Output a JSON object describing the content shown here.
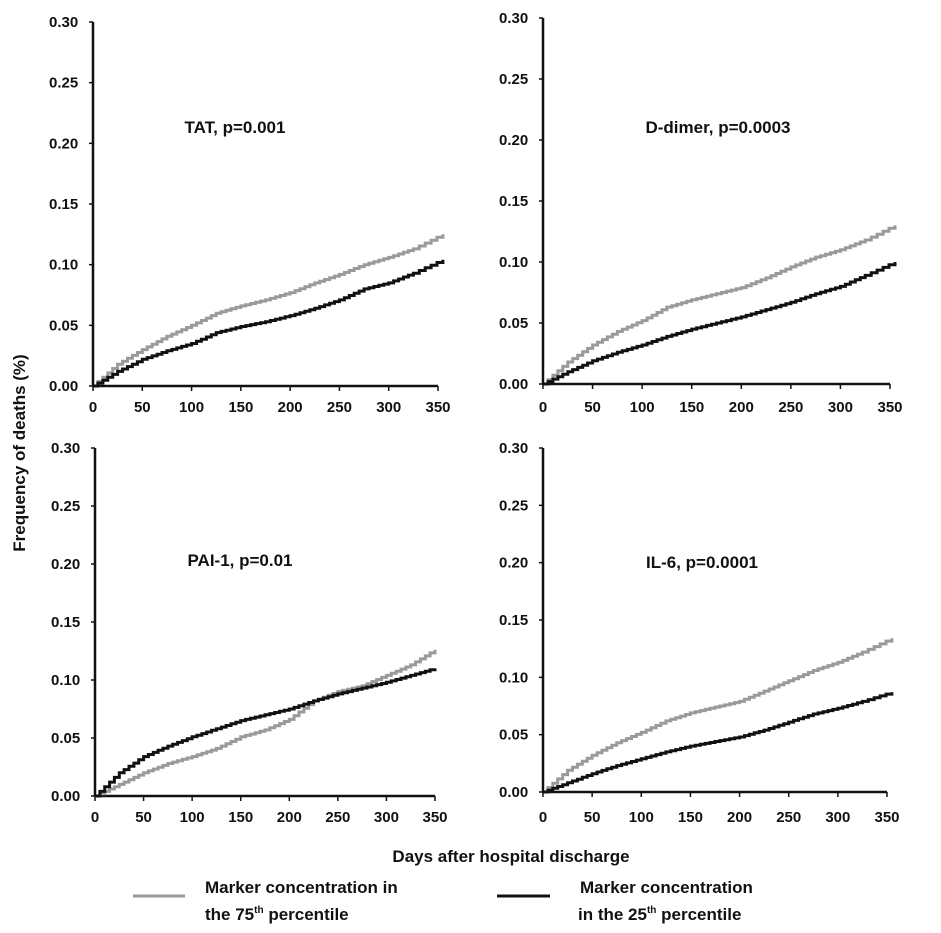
{
  "figure": {
    "ylabel": "Frequency of deaths (%)",
    "xlabel": "Days after hospital discharge"
  },
  "legend": {
    "items": [
      {
        "line1": "Marker concentration in",
        "line2_pre": "the 75",
        "line2_sup": "th",
        "line2_post": " percentile",
        "color": "#9a9a9a"
      },
      {
        "line1": "Marker concentration",
        "line2_pre": "in the 25",
        "line2_sup": "th",
        "line2_post": " percentile",
        "color": "#111111"
      }
    ]
  },
  "chart_data": [
    {
      "type": "line",
      "title": "TAT, p=0.001",
      "xlim": [
        0,
        350
      ],
      "ylim": [
        0,
        0.3
      ],
      "xticks": [
        "0",
        "50",
        "100",
        "150",
        "200",
        "250",
        "300",
        "350"
      ],
      "yticks": [
        "0.00",
        "0.05",
        "0.10",
        "0.15",
        "0.20",
        "0.25",
        "0.30"
      ],
      "series": [
        {
          "color": "#9a9a9a",
          "x": [
            0,
            25,
            50,
            75,
            100,
            125,
            150,
            175,
            200,
            225,
            250,
            275,
            300,
            325,
            355
          ],
          "y": [
            0,
            0.018,
            0.03,
            0.041,
            0.05,
            0.06,
            0.066,
            0.071,
            0.077,
            0.085,
            0.092,
            0.1,
            0.106,
            0.113,
            0.125
          ]
        },
        {
          "color": "#111111",
          "x": [
            0,
            25,
            50,
            75,
            100,
            125,
            150,
            175,
            200,
            225,
            250,
            275,
            300,
            325,
            355
          ],
          "y": [
            0,
            0.012,
            0.022,
            0.029,
            0.035,
            0.044,
            0.049,
            0.053,
            0.058,
            0.064,
            0.071,
            0.08,
            0.085,
            0.093,
            0.104
          ]
        }
      ]
    },
    {
      "type": "line",
      "title": "D-dimer, p=0.0003",
      "xlim": [
        0,
        350
      ],
      "ylim": [
        0,
        0.3
      ],
      "xticks": [
        "0",
        "50",
        "100",
        "150",
        "200",
        "250",
        "300",
        "350"
      ],
      "yticks": [
        "0.00",
        "0.05",
        "0.10",
        "0.15",
        "0.20",
        "0.25",
        "0.30"
      ],
      "series": [
        {
          "color": "#9a9a9a",
          "x": [
            0,
            25,
            50,
            75,
            100,
            125,
            150,
            175,
            200,
            225,
            250,
            275,
            300,
            325,
            355
          ],
          "y": [
            0,
            0.018,
            0.032,
            0.043,
            0.052,
            0.063,
            0.069,
            0.074,
            0.079,
            0.087,
            0.096,
            0.104,
            0.11,
            0.118,
            0.13
          ]
        },
        {
          "color": "#111111",
          "x": [
            0,
            25,
            50,
            75,
            100,
            125,
            150,
            175,
            200,
            225,
            250,
            275,
            300,
            325,
            355
          ],
          "y": [
            0,
            0.01,
            0.019,
            0.026,
            0.032,
            0.039,
            0.045,
            0.05,
            0.055,
            0.061,
            0.067,
            0.074,
            0.08,
            0.089,
            0.1
          ]
        }
      ]
    },
    {
      "type": "line",
      "title": "PAI-1, p=0.01",
      "xlim": [
        0,
        350
      ],
      "ylim": [
        0,
        0.3
      ],
      "xticks": [
        "0",
        "50",
        "100",
        "150",
        "200",
        "250",
        "300",
        "350"
      ],
      "yticks": [
        "0.00",
        "0.05",
        "0.10",
        "0.15",
        "0.20",
        "0.25",
        "0.30"
      ],
      "series": [
        {
          "color": "#9a9a9a",
          "x": [
            0,
            25,
            50,
            75,
            100,
            125,
            150,
            175,
            200,
            225,
            250,
            275,
            300,
            325,
            350
          ],
          "y": [
            0,
            0.01,
            0.02,
            0.028,
            0.034,
            0.041,
            0.051,
            0.057,
            0.066,
            0.082,
            0.09,
            0.095,
            0.104,
            0.113,
            0.126
          ]
        },
        {
          "color": "#111111",
          "x": [
            0,
            25,
            50,
            75,
            100,
            125,
            150,
            175,
            200,
            225,
            250,
            275,
            300,
            325,
            350
          ],
          "y": [
            0,
            0.02,
            0.034,
            0.043,
            0.051,
            0.058,
            0.065,
            0.07,
            0.075,
            0.082,
            0.088,
            0.093,
            0.098,
            0.104,
            0.11
          ]
        }
      ]
    },
    {
      "type": "line",
      "title": "IL-6, p=0.0001",
      "xlim": [
        0,
        350
      ],
      "ylim": [
        0,
        0.3
      ],
      "xticks": [
        "0",
        "50",
        "100",
        "150",
        "200",
        "250",
        "300",
        "350"
      ],
      "yticks": [
        "0.00",
        "0.05",
        "0.10",
        "0.15",
        "0.20",
        "0.25",
        "0.30"
      ],
      "series": [
        {
          "color": "#9a9a9a",
          "x": [
            0,
            25,
            50,
            75,
            100,
            125,
            150,
            175,
            200,
            225,
            250,
            275,
            300,
            325,
            355
          ],
          "y": [
            0,
            0.019,
            0.032,
            0.043,
            0.052,
            0.062,
            0.069,
            0.074,
            0.079,
            0.088,
            0.097,
            0.106,
            0.113,
            0.122,
            0.134
          ]
        },
        {
          "color": "#111111",
          "x": [
            0,
            25,
            50,
            75,
            100,
            125,
            150,
            175,
            200,
            225,
            250,
            275,
            300,
            325,
            355
          ],
          "y": [
            0,
            0.008,
            0.016,
            0.023,
            0.029,
            0.035,
            0.04,
            0.044,
            0.048,
            0.054,
            0.061,
            0.068,
            0.073,
            0.079,
            0.087
          ]
        }
      ]
    }
  ]
}
